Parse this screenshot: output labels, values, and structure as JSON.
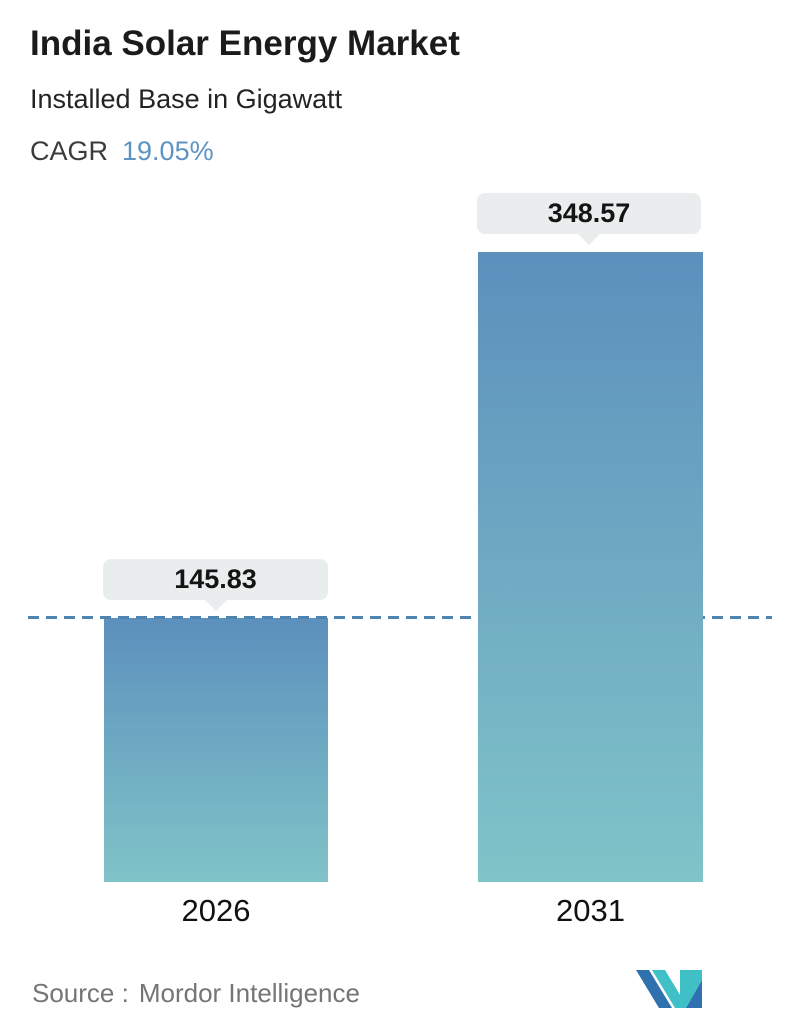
{
  "header": {
    "title": "India Solar Energy Market",
    "subtitle": "Installed Base in Gigawatt",
    "cagr_label": "CAGR",
    "cagr_value": "19.05%"
  },
  "chart_data": {
    "type": "bar",
    "categories": [
      "2026",
      "2031"
    ],
    "values": [
      145.83,
      348.57
    ],
    "value_labels": [
      "145.83",
      "348.57"
    ],
    "title": "India Solar Energy Market",
    "subtitle": "Installed Base in Gigawatt",
    "unit": "Gigawatt",
    "cagr": "19.05%",
    "ylim": [
      0,
      348.57
    ],
    "grid": false,
    "legend": false,
    "reference_line_value": 145.83,
    "bar_gradient": [
      "#5c90bd",
      "#80c4c8"
    ],
    "dashed_line_color": "#4f83b0"
  },
  "colors": {
    "accent_blue": "#5e93c3",
    "tooltip_bg": "#e9edee",
    "text_dark": "#1b1b1b",
    "source_gray": "#757575"
  },
  "footer": {
    "source_label": "Source :",
    "source_name": "Mordor Intelligence",
    "logo_name": "mordor-intelligence-logo",
    "logo_colors": {
      "blue": "#2e71ae",
      "teal": "#3fc0c6"
    }
  }
}
